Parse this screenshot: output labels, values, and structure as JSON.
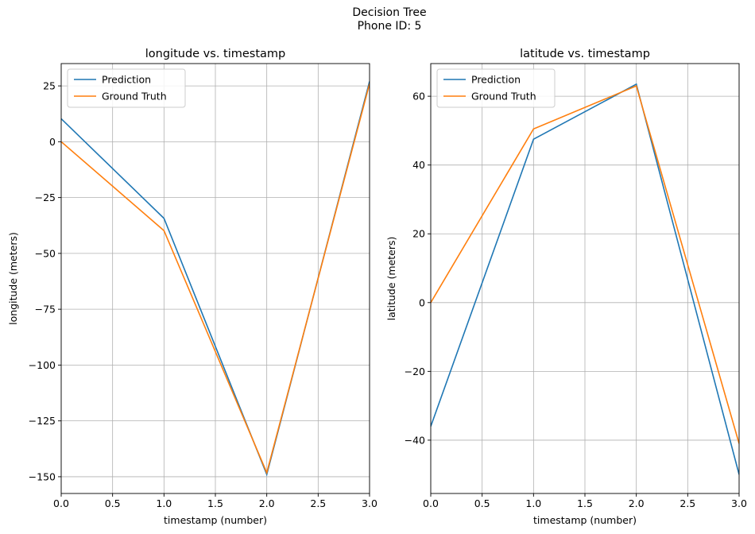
{
  "figure": {
    "title_line1": "Decision Tree",
    "title_line2": "Phone ID: 5"
  },
  "colors": {
    "prediction": "#1f77b4",
    "ground_truth": "#ff7f0e",
    "grid": "#b0b0b0"
  },
  "chart_data": [
    {
      "type": "line",
      "title": "longitude vs. timestamp",
      "xlabel": "timestamp (number)",
      "ylabel": "longitude (meters)",
      "xlim": [
        0,
        3
      ],
      "ylim": [
        -157.5,
        35
      ],
      "xticks": [
        0.0,
        0.5,
        1.0,
        1.5,
        2.0,
        2.5,
        3.0
      ],
      "xtick_labels": [
        "0.0",
        "0.5",
        "1.0",
        "1.5",
        "2.0",
        "2.5",
        "3.0"
      ],
      "yticks": [
        25,
        0,
        -25,
        -50,
        -75,
        -100,
        -125,
        -150
      ],
      "ytick_labels": [
        "25",
        "0",
        "−25",
        "−50",
        "−75",
        "−100",
        "−125",
        "−150"
      ],
      "grid": true,
      "legend": "upper left",
      "x": [
        0,
        1,
        2,
        3
      ],
      "series": [
        {
          "name": "Prediction",
          "values": [
            10.3,
            -34.3,
            -149.0,
            27.0
          ]
        },
        {
          "name": "Ground Truth",
          "values": [
            0.0,
            -39.8,
            -148.2,
            26.0
          ]
        }
      ]
    },
    {
      "type": "line",
      "title": "latitude vs. timestamp",
      "xlabel": "timestamp (number)",
      "ylabel": "latitude (meters)",
      "xlim": [
        0,
        3
      ],
      "ylim": [
        -55.5,
        69.5
      ],
      "xticks": [
        0.0,
        0.5,
        1.0,
        1.5,
        2.0,
        2.5,
        3.0
      ],
      "xtick_labels": [
        "0.0",
        "0.5",
        "1.0",
        "1.5",
        "2.0",
        "2.5",
        "3.0"
      ],
      "yticks": [
        60,
        40,
        20,
        0,
        -20,
        -40
      ],
      "ytick_labels": [
        "60",
        "40",
        "20",
        "0",
        "−20",
        "−40"
      ],
      "grid": true,
      "legend": "upper left",
      "x": [
        0,
        1,
        2,
        3
      ],
      "series": [
        {
          "name": "Prediction",
          "values": [
            -36.0,
            47.5,
            63.5,
            -50.0
          ]
        },
        {
          "name": "Ground Truth",
          "values": [
            0.0,
            50.5,
            63.0,
            -41.0
          ]
        }
      ]
    }
  ]
}
